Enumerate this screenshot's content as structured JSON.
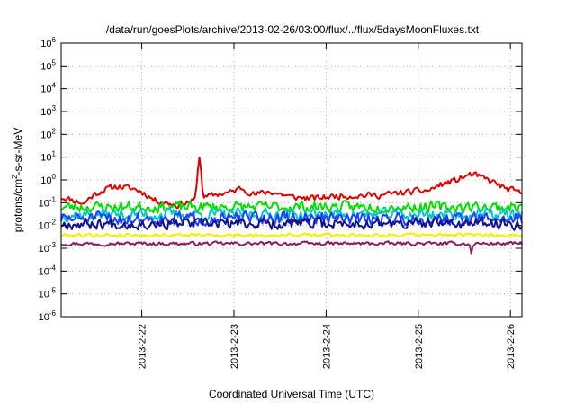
{
  "chart_data": {
    "type": "line",
    "title": "/data/run/goesPlots/archive/2013-02-26/03:00/flux/../flux/5daysMoonFluxes.txt",
    "xlabel": "Coordinated Universal Time (UTC)",
    "ylabel": {
      "prefix": "protons/cm",
      "sup": "2",
      "suffix": "-s-sr-MeV"
    },
    "yscale": "log",
    "ylim": [
      1e-06,
      1000000.0
    ],
    "yticks": [
      {
        "base": "10",
        "exp": "-6"
      },
      {
        "base": "10",
        "exp": "-5"
      },
      {
        "base": "10",
        "exp": "-4"
      },
      {
        "base": "10",
        "exp": "-3"
      },
      {
        "base": "10",
        "exp": "-2"
      },
      {
        "base": "10",
        "exp": "-1"
      },
      {
        "base": "10",
        "exp": "0"
      },
      {
        "base": "10",
        "exp": "1"
      },
      {
        "base": "10",
        "exp": "2"
      },
      {
        "base": "10",
        "exp": "3"
      },
      {
        "base": "10",
        "exp": "4"
      },
      {
        "base": "10",
        "exp": "5"
      },
      {
        "base": "10",
        "exp": "6"
      }
    ],
    "xlim": [
      "2013-02-21 03:00",
      "2013-02-26 03:00"
    ],
    "xticks": [
      "2013-2-22",
      "2013-2-23",
      "2013-2-24",
      "2013-2-25",
      "2013-2-26"
    ],
    "grid": true,
    "series": [
      {
        "color": "#e00000",
        "width": 2,
        "base": 0.22,
        "noise": 0.32,
        "seed": 11,
        "profile": [
          [
            0,
            0.8
          ],
          [
            0.05,
            0.4
          ],
          [
            0.12,
            2.4
          ],
          [
            0.16,
            1.8
          ],
          [
            0.2,
            0.6
          ],
          [
            0.25,
            0.35
          ],
          [
            0.3,
            0.6
          ],
          [
            0.34,
            1.1
          ],
          [
            0.37,
            1.3
          ],
          [
            0.39,
            2.0
          ],
          [
            0.42,
            1.0
          ],
          [
            0.45,
            1.4
          ],
          [
            0.5,
            0.8
          ],
          [
            0.55,
            0.7
          ],
          [
            0.6,
            0.9
          ],
          [
            0.7,
            1.0
          ],
          [
            0.8,
            1.6
          ],
          [
            0.86,
            4.5
          ],
          [
            0.89,
            8.0
          ],
          [
            0.92,
            5.0
          ],
          [
            0.96,
            2.0
          ],
          [
            1.0,
            1.1
          ]
        ],
        "spikes": [
          {
            "x": 0.3,
            "peak": 10,
            "width": 0.004
          }
        ]
      },
      {
        "color": "#00e000",
        "width": 2,
        "base": 0.065,
        "noise": 0.55,
        "seed": 23,
        "profile": [
          [
            0,
            1
          ],
          [
            1,
            1
          ]
        ],
        "spikes": []
      },
      {
        "color": "#00c8c8",
        "width": 2,
        "base": 0.03,
        "noise": 0.6,
        "seed": 37,
        "profile": [
          [
            0,
            1
          ],
          [
            1,
            1
          ]
        ],
        "spikes": []
      },
      {
        "color": "#2040ff",
        "width": 2,
        "base": 0.02,
        "noise": 0.65,
        "seed": 51,
        "profile": [
          [
            0,
            1
          ],
          [
            1,
            1
          ]
        ],
        "spikes": []
      },
      {
        "color": "#101090",
        "width": 2,
        "base": 0.012,
        "noise": 0.55,
        "seed": 67,
        "profile": [
          [
            0,
            1
          ],
          [
            1,
            1
          ]
        ],
        "spikes": []
      },
      {
        "color": "#f0f000",
        "width": 2,
        "base": 0.0038,
        "noise": 0.18,
        "seed": 79,
        "profile": [
          [
            0,
            1
          ],
          [
            1,
            1
          ]
        ],
        "spikes": []
      },
      {
        "color": "#8b1c62",
        "width": 2,
        "base": 0.0016,
        "noise": 0.18,
        "seed": 97,
        "profile": [
          [
            0,
            1
          ],
          [
            1,
            1
          ]
        ],
        "spikes": [
          {
            "x": 0.89,
            "peak": 0.0006,
            "width": 0.002
          }
        ]
      }
    ]
  }
}
